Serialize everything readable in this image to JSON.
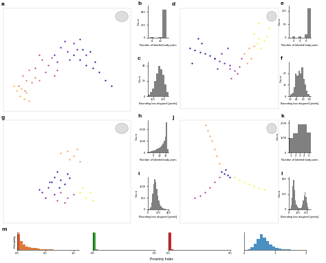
{
  "chart_data": [
    {
      "type": "scatter",
      "panel": "a",
      "tick_labels": false,
      "xlim": [
        0,
        1
      ],
      "ylim": [
        0,
        1
      ],
      "series": [
        {
          "color": "#0d0887",
          "x": [
            0.55,
            0.6,
            0.65,
            0.7,
            0.75,
            0.8,
            0.72,
            0.68,
            0.85,
            0.62
          ],
          "y": [
            0.55,
            0.5,
            0.45,
            0.42,
            0.38,
            0.3,
            0.48,
            0.58,
            0.25,
            0.6
          ]
        },
        {
          "color": "#6a00a8",
          "x": [
            0.45,
            0.5,
            0.55,
            0.4,
            0.52,
            0.6,
            0.48,
            0.58,
            0.42,
            0.65
          ],
          "y": [
            0.62,
            0.58,
            0.66,
            0.55,
            0.5,
            0.7,
            0.68,
            0.6,
            0.48,
            0.55
          ]
        },
        {
          "color": "#b12a90",
          "x": [
            0.3,
            0.35,
            0.38,
            0.42,
            0.33,
            0.28,
            0.4,
            0.25
          ],
          "y": [
            0.5,
            0.45,
            0.52,
            0.4,
            0.38,
            0.55,
            0.35,
            0.42
          ]
        },
        {
          "color": "#e16462",
          "x": [
            0.15,
            0.18,
            0.22,
            0.2,
            0.25,
            0.12,
            0.28,
            0.17
          ],
          "y": [
            0.35,
            0.3,
            0.28,
            0.4,
            0.33,
            0.25,
            0.3,
            0.2
          ]
        },
        {
          "color": "#fca636",
          "x": [
            0.1,
            0.13,
            0.16,
            0.08,
            0.2,
            0.14,
            0.18
          ],
          "y": [
            0.2,
            0.15,
            0.12,
            0.25,
            0.1,
            0.22,
            0.18
          ]
        }
      ]
    },
    {
      "type": "histogram",
      "panel": "b",
      "color": "#808080",
      "bins": [
        7.5,
        8.5,
        9.5,
        10.5,
        11.5
      ],
      "counts": [
        15,
        5,
        10,
        440
      ],
      "xlabel": "Number of labeled body parts",
      "ylabel": "Count",
      "xlim": [
        7,
        12
      ],
      "xticks": [
        8,
        10
      ],
      "ylim": [
        0,
        500
      ],
      "yticks": [
        0,
        200,
        400
      ]
    },
    {
      "type": "histogram",
      "panel": "c",
      "color": "#808080",
      "bins": [
        50,
        70,
        90,
        110,
        130,
        150,
        170,
        190,
        210,
        230,
        250
      ],
      "counts": [
        2,
        5,
        10,
        20,
        30,
        40,
        35,
        28,
        15,
        5
      ],
      "xlabel": "Bounding box diagonal [pixels]",
      "ylabel": "Count",
      "xlim": [
        50,
        250
      ],
      "xticks": [
        100,
        200
      ],
      "ylim": [
        0,
        45
      ],
      "yticks": [
        0,
        20,
        40
      ]
    },
    {
      "type": "scatter",
      "panel": "d",
      "tick_labels": false,
      "xlim": [
        0,
        1
      ],
      "ylim": [
        0,
        1
      ],
      "series": [
        {
          "color": "#0d0887",
          "x": [
            0.1,
            0.15,
            0.2,
            0.25,
            0.3,
            0.35,
            0.12,
            0.18,
            0.22
          ],
          "y": [
            0.6,
            0.58,
            0.56,
            0.55,
            0.53,
            0.5,
            0.45,
            0.7,
            0.65
          ]
        },
        {
          "color": "#6a00a8",
          "x": [
            0.35,
            0.4,
            0.45,
            0.5,
            0.42,
            0.38,
            0.48
          ],
          "y": [
            0.5,
            0.47,
            0.45,
            0.43,
            0.55,
            0.4,
            0.6
          ]
        },
        {
          "color": "#b12a90",
          "x": [
            0.5,
            0.55,
            0.6,
            0.52,
            0.58,
            0.62
          ],
          "y": [
            0.4,
            0.38,
            0.42,
            0.3,
            0.35,
            0.5
          ]
        },
        {
          "color": "#f89540",
          "x": [
            0.65,
            0.7,
            0.68,
            0.72,
            0.75
          ],
          "y": [
            0.55,
            0.6,
            0.45,
            0.5,
            0.62
          ]
        },
        {
          "color": "#f0f921",
          "x": [
            0.75,
            0.8,
            0.85,
            0.82,
            0.78,
            0.88,
            0.9,
            0.8
          ],
          "y": [
            0.75,
            0.7,
            0.68,
            0.6,
            0.65,
            0.72,
            0.8,
            0.85
          ]
        }
      ]
    },
    {
      "type": "histogram",
      "panel": "e",
      "color": "#808080",
      "bins": [
        0.5,
        1.5,
        2.5,
        3.5,
        4.5,
        5.5,
        6.5,
        7.5
      ],
      "counts": [
        0,
        6,
        0,
        4,
        0,
        12,
        110
      ],
      "xlabel": "Number of labeled body parts",
      "ylabel": "Count",
      "xlim": [
        0.5,
        7.5
      ],
      "xticks": [
        2,
        4,
        6
      ],
      "ylim": [
        0,
        120
      ],
      "yticks": [
        0,
        50,
        100
      ]
    },
    {
      "type": "histogram",
      "panel": "f",
      "color": "#808080",
      "bins": [
        20,
        25,
        30,
        35,
        40,
        45,
        50,
        55,
        60,
        65,
        70,
        75,
        80
      ],
      "counts": [
        2,
        3,
        8,
        20,
        18,
        22,
        20,
        25,
        15,
        10,
        5,
        2
      ],
      "xlabel": "Bounding box diagonal [pixels]",
      "ylabel": "Count",
      "xlim": [
        15,
        85
      ],
      "xticks": [
        20,
        40,
        60,
        80
      ],
      "ylim": [
        0,
        30
      ],
      "yticks": [
        0,
        10,
        20
      ]
    },
    {
      "type": "scatter",
      "panel": "g",
      "tick_labels": false,
      "xlim": [
        0,
        1
      ],
      "ylim": [
        0,
        1
      ],
      "series": [
        {
          "color": "#0d0887",
          "x": [
            0.4,
            0.45,
            0.5,
            0.42,
            0.48,
            0.38,
            0.52,
            0.44
          ],
          "y": [
            0.45,
            0.42,
            0.48,
            0.5,
            0.38,
            0.4,
            0.44,
            0.35
          ]
        },
        {
          "color": "#6a00a8",
          "x": [
            0.35,
            0.3,
            0.4,
            0.33,
            0.28,
            0.36
          ],
          "y": [
            0.35,
            0.3,
            0.28,
            0.25,
            0.33,
            0.4
          ]
        },
        {
          "color": "#b12a90",
          "x": [
            0.45,
            0.5,
            0.55,
            0.48,
            0.42
          ],
          "y": [
            0.3,
            0.25,
            0.28,
            0.2,
            0.22
          ]
        },
        {
          "color": "#f89540",
          "x": [
            0.5,
            0.55,
            0.6,
            0.52,
            0.58,
            0.45
          ],
          "y": [
            0.7,
            0.65,
            0.6,
            0.62,
            0.72,
            0.68
          ]
        },
        {
          "color": "#f0f921",
          "x": [
            0.6,
            0.65,
            0.7,
            0.62,
            0.68
          ],
          "y": [
            0.3,
            0.25,
            0.22,
            0.35,
            0.3
          ]
        }
      ]
    },
    {
      "type": "histogram",
      "panel": "h",
      "color": "#808080",
      "bins": [
        0.5,
        1.5,
        2.5,
        3.5,
        4.5,
        5.5,
        6.5,
        7.5,
        8.5,
        9.5,
        10.5,
        11.5,
        12.5,
        13.5,
        14.5,
        15.5,
        16.5,
        17.5
      ],
      "counts": [
        50,
        80,
        100,
        120,
        150,
        200,
        250,
        300,
        350,
        400,
        500,
        600,
        800,
        1000,
        1400,
        2600,
        300
      ],
      "xlabel": "Number of labeled body parts",
      "ylabel": "Count",
      "xlim": [
        0.5,
        17.5
      ],
      "xticks": [
        5,
        10,
        15
      ],
      "ylim": [
        0,
        2800
      ],
      "yticks": [
        0,
        1000,
        2000
      ]
    },
    {
      "type": "histogram",
      "panel": "i",
      "color": "#808080",
      "bins": [
        0,
        20,
        40,
        60,
        80,
        100,
        120,
        140,
        160,
        180,
        200,
        220,
        240,
        260,
        280,
        300,
        320,
        340,
        360,
        380,
        400
      ],
      "counts": [
        0,
        20,
        100,
        300,
        700,
        1100,
        1300,
        1200,
        900,
        600,
        400,
        250,
        150,
        100,
        60,
        40,
        20,
        10,
        5,
        0
      ],
      "xlabel": "Bounding box diagonal [pixels]",
      "ylabel": "Count",
      "xlim": [
        0,
        400
      ],
      "xticks": [
        0,
        200,
        400
      ],
      "ylim": [
        0,
        1400
      ],
      "yticks": [
        0,
        500,
        1000
      ]
    },
    {
      "type": "scatter",
      "panel": "j",
      "tick_labels": false,
      "xlim": [
        0,
        1
      ],
      "ylim": [
        0,
        1
      ],
      "series": [
        {
          "color": "#f89540",
          "x": [
            0.3,
            0.32,
            0.35,
            0.37,
            0.4,
            0.28,
            0.26
          ],
          "y": [
            0.85,
            0.8,
            0.72,
            0.65,
            0.58,
            0.9,
            0.95
          ]
        },
        {
          "color": "#0d0887",
          "x": [
            0.42,
            0.45,
            0.48,
            0.5,
            0.46
          ],
          "y": [
            0.5,
            0.48,
            0.47,
            0.45,
            0.52
          ]
        },
        {
          "color": "#b12a90",
          "x": [
            0.4,
            0.35,
            0.3,
            0.25,
            0.2,
            0.15
          ],
          "y": [
            0.45,
            0.4,
            0.35,
            0.3,
            0.27,
            0.25
          ]
        },
        {
          "color": "#f0f921",
          "x": [
            0.55,
            0.6,
            0.65,
            0.7,
            0.75,
            0.8,
            0.85
          ],
          "y": [
            0.45,
            0.42,
            0.4,
            0.38,
            0.36,
            0.34,
            0.33
          ]
        }
      ]
    },
    {
      "type": "histogram",
      "panel": "k",
      "color": "#808080",
      "bins": [
        0.5,
        1.5,
        2.5,
        3.5,
        4.5,
        5.5
      ],
      "counts": [
        1000,
        1300,
        1900,
        1900,
        1350
      ],
      "xlabel": "Number of labeled body parts",
      "ylabel": "Count",
      "xlim": [
        0.5,
        5.5
      ],
      "xticks": [
        1,
        2,
        3,
        4,
        5
      ],
      "ylim": [
        0,
        2200
      ],
      "yticks": [
        0,
        1000,
        2000
      ]
    },
    {
      "type": "histogram",
      "panel": "l",
      "color": "#808080",
      "bins": [
        0,
        10,
        20,
        30,
        40,
        50,
        60,
        70,
        80,
        90,
        100,
        110,
        120,
        130,
        140,
        150,
        160,
        170,
        180,
        190,
        200,
        210,
        220,
        230,
        240,
        250
      ],
      "counts": [
        0,
        5,
        50,
        150,
        300,
        380,
        250,
        120,
        60,
        40,
        30,
        20,
        15,
        20,
        30,
        60,
        120,
        180,
        220,
        160,
        90,
        40,
        10,
        3,
        0
      ],
      "xlabel": "Bounding box diagonal [pixels]",
      "ylabel": "Count",
      "xlim": [
        0,
        250
      ],
      "xticks": [
        0,
        100,
        200
      ],
      "ylim": [
        0,
        420
      ],
      "yticks": [
        0,
        200,
        400
      ]
    },
    {
      "type": "histogram_group",
      "panel": "m",
      "xlabel": "Proximity Index",
      "ylabel": "Probability",
      "tick_labels": "x",
      "charts": [
        {
          "xlim": [
            0,
            1.1
          ],
          "ylim": [
            0,
            0.4
          ],
          "xticks": [
            {
              "value": 0,
              "label": "0.0"
            },
            {
              "value": 0.5,
              "label": "0.5"
            },
            {
              "value": 1,
              "label": "1.0"
            }
          ],
          "series": [
            {
              "type": "histogram",
              "color": "#e07b39",
              "bins": [
                0,
                0.05,
                0.1,
                0.15,
                0.2,
                0.25,
                0.3,
                0.35,
                0.4,
                0.45,
                0.5,
                0.55,
                0.6,
                0.65,
                0.7,
                0.75,
                0.8,
                0.85,
                0.9,
                0.95,
                1.0
              ],
              "values": [
                0.35,
                0.2,
                0.12,
                0.08,
                0.06,
                0.05,
                0.04,
                0.03,
                0.02,
                0.02,
                0.01,
                0.01,
                0.01,
                0.005,
                0.005,
                0.003,
                0.002,
                0.002,
                0.001,
                0.001
              ]
            },
            {
              "type": "vline",
              "color": "#d62728",
              "values": [
                0.02
              ]
            }
          ]
        },
        {
          "xlim": [
            0,
            0.5
          ],
          "ylim": [
            0,
            1
          ],
          "xticks": [
            {
              "value": 0,
              "label": "0.0"
            },
            {
              "value": 0.5,
              "label": "0.5"
            }
          ],
          "series": [
            {
              "type": "histogram",
              "color": "#2ca02c",
              "bins": [
                0,
                0.02,
                0.04,
                0.06,
                0.08
              ],
              "values": [
                0.95,
                0.03,
                0.01,
                0.01
              ]
            },
            {
              "type": "vline",
              "color": "#2ca02c",
              "values": [
                0.01
              ]
            }
          ]
        },
        {
          "xlim": [
            0,
            0.5
          ],
          "ylim": [
            0,
            1
          ],
          "xticks": [
            {
              "value": 0,
              "label": "0.0"
            },
            {
              "value": 0.5,
              "label": "0.5"
            }
          ],
          "series": [
            {
              "type": "histogram",
              "color": "#d62728",
              "bins": [
                0,
                0.02,
                0.04
              ],
              "values": [
                0.98,
                0.02
              ]
            },
            {
              "type": "vline",
              "color": "#d62728",
              "values": [
                0.01
              ]
            }
          ]
        },
        {
          "xlim": [
            0,
            2
          ],
          "ylim": [
            0,
            1
          ],
          "xticks": [
            0,
            1,
            2
          ],
          "series": [
            {
              "type": "histogram",
              "color": "#4a90c2",
              "bins": [
                0,
                0.1,
                0.2,
                0.3,
                0.4,
                0.5,
                0.6,
                0.7,
                0.8,
                0.9,
                1.0,
                1.1,
                1.2,
                1.3,
                1.4,
                1.5,
                1.6,
                1.7,
                1.8,
                1.9,
                2.0
              ],
              "values": [
                0.01,
                0.05,
                0.15,
                0.35,
                0.6,
                0.9,
                0.7,
                0.5,
                0.3,
                0.2,
                0.12,
                0.08,
                0.05,
                0.03,
                0.02,
                0.01,
                0.01,
                0.005,
                0.003,
                0.001
              ]
            }
          ]
        }
      ]
    }
  ]
}
